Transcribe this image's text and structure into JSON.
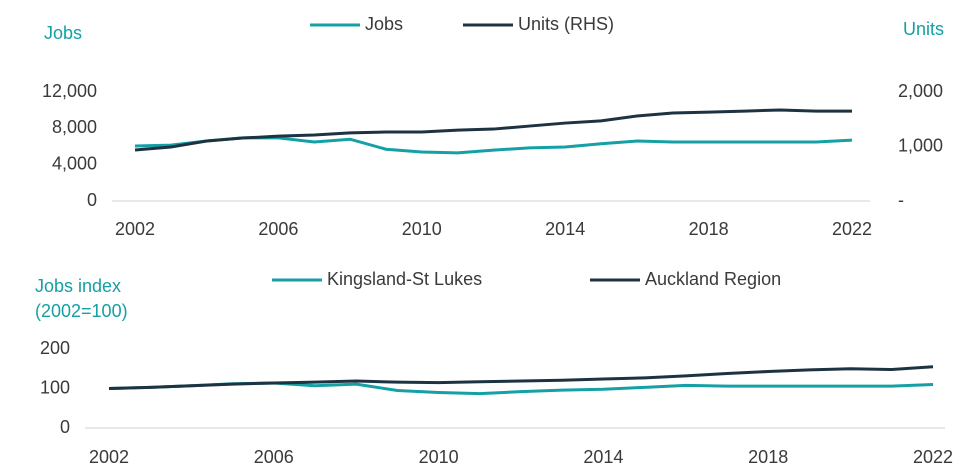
{
  "chart_data": [
    {
      "type": "line",
      "ylabel": "Jobs",
      "y2label": "Units",
      "x": [
        2002,
        2003,
        2004,
        2005,
        2006,
        2007,
        2008,
        2009,
        2010,
        2011,
        2012,
        2013,
        2014,
        2015,
        2016,
        2017,
        2018,
        2019,
        2020,
        2021,
        2022
      ],
      "xlim": [
        2002,
        2022
      ],
      "xticks": [
        2002,
        2006,
        2010,
        2014,
        2018,
        2022
      ],
      "ylim": [
        0,
        12000
      ],
      "yticks": [
        0,
        {
          "value": 4000,
          "label": "4,000"
        },
        {
          "value": 8000,
          "label": "8,000"
        },
        {
          "value": 12000,
          "label": "12,000"
        }
      ],
      "y2lim": [
        0,
        2000
      ],
      "y2ticks": [
        {
          "value": 0,
          "label": "-"
        },
        {
          "value": 1000,
          "label": "1,000"
        },
        {
          "value": 2000,
          "label": "2,000"
        }
      ],
      "series": [
        {
          "name": "Jobs",
          "color": "#14a0a4",
          "values": [
            6050,
            6150,
            6600,
            6950,
            6950,
            6500,
            6800,
            5700,
            5400,
            5300,
            5600,
            5850,
            5950,
            6300,
            6600,
            6500,
            6500,
            6500,
            6500,
            6500,
            6700
          ]
        },
        {
          "name": "Units (RHS)",
          "color": "#1d3342",
          "axis": "y2",
          "values": [
            935,
            990,
            1100,
            1155,
            1190,
            1210,
            1250,
            1265,
            1265,
            1300,
            1320,
            1375,
            1430,
            1470,
            1560,
            1615,
            1630,
            1650,
            1670,
            1650,
            1650
          ]
        }
      ]
    },
    {
      "type": "line",
      "ylabel": [
        "Jobs index",
        "(2002=100)"
      ],
      "x": [
        2002,
        2003,
        2004,
        2005,
        2006,
        2007,
        2008,
        2009,
        2010,
        2011,
        2012,
        2013,
        2014,
        2015,
        2016,
        2017,
        2018,
        2019,
        2020,
        2021,
        2022
      ],
      "xlim": [
        2002,
        2022
      ],
      "xticks": [
        2002,
        2006,
        2010,
        2014,
        2018,
        2022
      ],
      "ylim": [
        0,
        200
      ],
      "yticks": [
        0,
        100,
        200
      ],
      "series": [
        {
          "name": "Kingsland-St Lukes",
          "color": "#14a0a4",
          "values": [
            100,
            103,
            107,
            112,
            114,
            107,
            111,
            95,
            90,
            87,
            92,
            96,
            98,
            103,
            108,
            106,
            106,
            106,
            106,
            106,
            110
          ]
        },
        {
          "name": "Auckland Region",
          "color": "#1d3342",
          "values": [
            100,
            103,
            107,
            111,
            114,
            116,
            119,
            116,
            115,
            117,
            119,
            121,
            124,
            127,
            132,
            138,
            143,
            147,
            150,
            148,
            155
          ]
        }
      ]
    }
  ]
}
